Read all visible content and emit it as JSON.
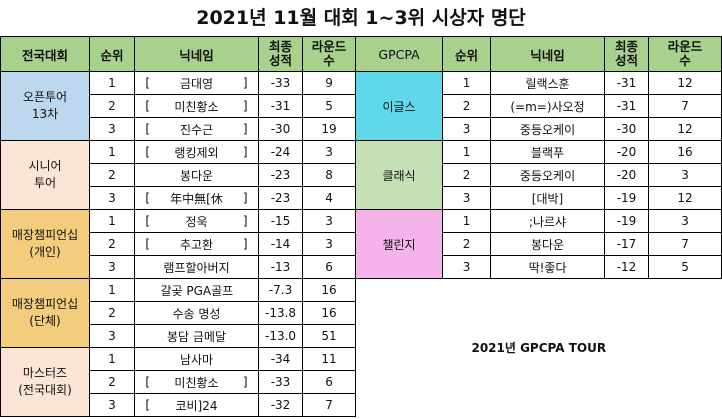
{
  "title": "2021년 11월 대회 1~3위 시상자 명단",
  "headers": {
    "category": "전국대회",
    "rank": "순위",
    "nickname": "닉네임",
    "final_score_1": "최종",
    "final_score_2": "성적",
    "rounds_1": "라운드",
    "rounds_2": "수",
    "gpcpa": "GPCPA",
    "rank_r": "순위",
    "nickname_r": "닉네임",
    "final_score_r_1": "최종",
    "final_score_r_2": "성적",
    "rounds_r_1": "라운드",
    "rounds_r_2": "수"
  },
  "left_groups": [
    {
      "name_lines": [
        "오픈투어",
        "13차"
      ],
      "color": "#bdd7ee",
      "rows": [
        {
          "rank": "1",
          "name_l": "[",
          "name_c": "금대영",
          "name_r": "]",
          "score": "-33",
          "rounds": "9"
        },
        {
          "rank": "2",
          "name_l": "[",
          "name_c": "미친황소",
          "name_r": "]",
          "score": "-31",
          "rounds": "5"
        },
        {
          "rank": "3",
          "name_l": "[",
          "name_c": "진수근",
          "name_r": "]",
          "score": "-30",
          "rounds": "19"
        }
      ]
    },
    {
      "name_lines": [
        "시니어",
        "투어"
      ],
      "color": "#fbe5d6",
      "rows": [
        {
          "rank": "1",
          "name_l": "[",
          "name_c": "랭킹제외",
          "name_r": "]",
          "score": "-24",
          "rounds": "3"
        },
        {
          "rank": "2",
          "name_l": "",
          "name_c": "봉다운",
          "name_r": "",
          "score": "-23",
          "rounds": "8"
        },
        {
          "rank": "3",
          "name_l": "[",
          "name_c": "年中無[休",
          "name_r": "]",
          "score": "-23",
          "rounds": "4"
        }
      ]
    },
    {
      "name_lines": [
        "매장챔피언십",
        "(개인)"
      ],
      "color": "#f4cc7e",
      "rows": [
        {
          "rank": "1",
          "name_l": "[",
          "name_c": "정욱",
          "name_r": "]",
          "score": "-15",
          "rounds": "3"
        },
        {
          "rank": "2",
          "name_l": "[",
          "name_c": "추고환",
          "name_r": "]",
          "score": "-14",
          "rounds": "3"
        },
        {
          "rank": "3",
          "name_l": "",
          "name_c": "램프할아버지",
          "name_r": "",
          "score": "-13",
          "rounds": "6"
        }
      ]
    },
    {
      "name_lines": [
        "매장챔피언십",
        "(단체)"
      ],
      "color": "#f4cc7e",
      "rows": [
        {
          "rank": "1",
          "name_l": "",
          "name_c": "갈곶 PGA골프",
          "name_r": "",
          "score": "-7.3",
          "rounds": "16"
        },
        {
          "rank": "2",
          "name_l": "",
          "name_c": "수송 명성",
          "name_r": "",
          "score": "-13.8",
          "rounds": "16"
        },
        {
          "rank": "3",
          "name_l": "",
          "name_c": "봉담 금메달",
          "name_r": "",
          "score": "-13.0",
          "rounds": "51"
        }
      ]
    },
    {
      "name_lines": [
        "마스터즈",
        "(전국대회)"
      ],
      "color": "#fbe5d6",
      "rows": [
        {
          "rank": "1",
          "name_l": "",
          "name_c": "남사마",
          "name_r": "",
          "score": "-34",
          "rounds": "11"
        },
        {
          "rank": "2",
          "name_l": "[",
          "name_c": "미친황소",
          "name_r": "]",
          "score": "-33",
          "rounds": "6"
        },
        {
          "rank": "3",
          "name_l": "[",
          "name_c": "코비]24",
          "name_r": "",
          "score": "-32",
          "rounds": "7"
        }
      ]
    }
  ],
  "right_groups": [
    {
      "name": "이글스",
      "color": "#5fd8ea",
      "rows": [
        {
          "rank": "1",
          "name": "릴랙스훈",
          "score": "-31",
          "rounds": "12"
        },
        {
          "rank": "2",
          "name": "(=m=)사오정",
          "score": "-31",
          "rounds": "7"
        },
        {
          "rank": "3",
          "name": "중등오케이",
          "score": "-30",
          "rounds": "12"
        }
      ]
    },
    {
      "name": "클래식",
      "color": "#c5e0b4",
      "rows": [
        {
          "rank": "1",
          "name": "블랙푸",
          "score": "-20",
          "rounds": "16"
        },
        {
          "rank": "2",
          "name": "중등오케이",
          "score": "-20",
          "rounds": "3"
        },
        {
          "rank": "3",
          "name": "[대박]",
          "score": "-19",
          "rounds": "12"
        }
      ]
    },
    {
      "name": "챌린지",
      "color": "#f4b3e9",
      "rows": [
        {
          "rank": "1",
          "name": ";나르샤",
          "score": "-19",
          "rounds": "3"
        },
        {
          "rank": "2",
          "name": "봉다운",
          "score": "-17",
          "rounds": "7"
        },
        {
          "rank": "3",
          "name": "딱!좋다",
          "score": "-12",
          "rounds": "5"
        }
      ]
    }
  ],
  "tour_label": "2021년 GPCPA TOUR"
}
